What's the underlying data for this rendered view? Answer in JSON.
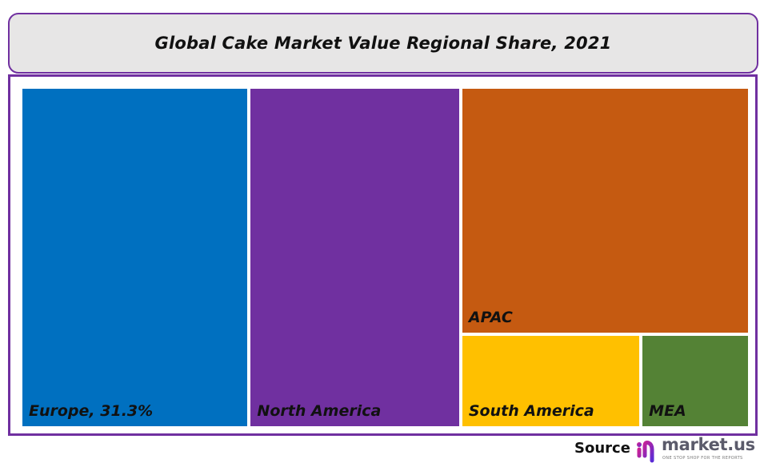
{
  "chart_data": {
    "type": "treemap",
    "title": "Global Cake Market Value Regional Share, 2021",
    "items": [
      {
        "name": "Europe",
        "label": "Europe, 31.3%",
        "value": 31.3,
        "color": "#0070c0"
      },
      {
        "name": "North America",
        "label": "North America",
        "value": 29.0,
        "color": "#7030a0"
      },
      {
        "name": "APAC",
        "label": "APAC",
        "value": 28.7,
        "color": "#c55a11"
      },
      {
        "name": "South America",
        "label": "South America",
        "value": 6.8,
        "color": "#ffc000"
      },
      {
        "name": "MEA",
        "label": "MEA",
        "value": 4.1,
        "color": "#548235"
      }
    ],
    "unit": "%"
  },
  "footer": {
    "source_label": "Source",
    "logo_text": "market.us",
    "logo_tagline": "ONE STOP SHOP FOR THE REPORTS"
  },
  "colors": {
    "frame": "#7030a0",
    "title_bg": "#e7e6e6"
  }
}
